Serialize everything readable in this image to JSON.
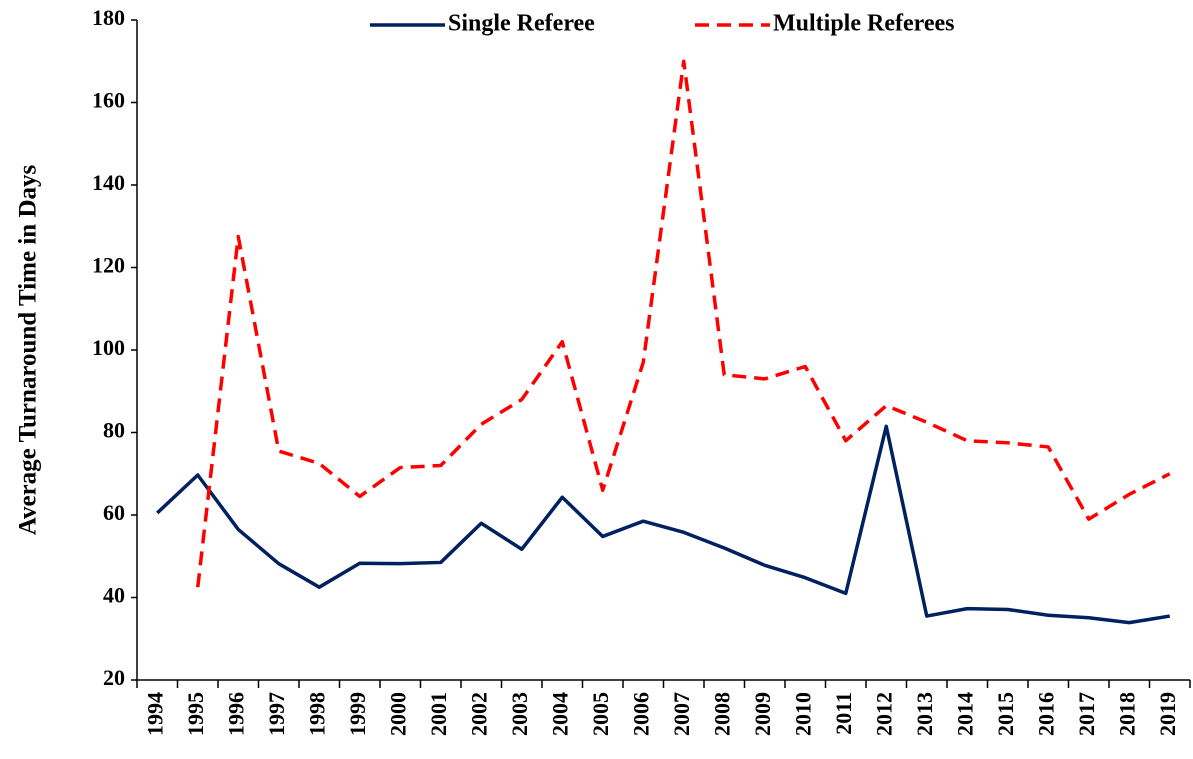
{
  "chart_data": {
    "type": "line",
    "y_label": "Average Turnaround Time in Days",
    "categories": [
      "1994",
      "1995",
      "1996",
      "1997",
      "1998",
      "1999",
      "2000",
      "2001",
      "2002",
      "2003",
      "2004",
      "2005",
      "2006",
      "2007",
      "2008",
      "2009",
      "2010",
      "2011",
      "2012",
      "2013",
      "2014",
      "2015",
      "2016",
      "2017",
      "2018",
      "2019"
    ],
    "series": [
      {
        "name": "Single Referee",
        "color": "#002060",
        "dash": false,
        "values": [
          60.5,
          69.7,
          56.5,
          48.2,
          42.5,
          48.3,
          48.2,
          48.5,
          58,
          51.7,
          64.3,
          54.8,
          58.5,
          55.8,
          52,
          47.8,
          44.8,
          41,
          81.5,
          35.5,
          37.3,
          37.1,
          35.7,
          35.1,
          33.9,
          35.5
        ]
      },
      {
        "name": "Multiple Referees",
        "color": "#ff0000",
        "dash": true,
        "values": [
          null,
          42.5,
          127.5,
          75.5,
          72.5,
          64.5,
          71.5,
          72,
          82,
          88,
          102,
          66,
          97,
          170,
          94,
          93,
          96,
          78,
          86.5,
          82.5,
          78,
          77.5,
          76.5,
          59,
          65,
          70
        ]
      }
    ],
    "ylim": [
      20,
      180
    ],
    "yticks": [
      20,
      40,
      60,
      80,
      100,
      120,
      140,
      160,
      180
    ],
    "grid": false,
    "legend": "top"
  }
}
